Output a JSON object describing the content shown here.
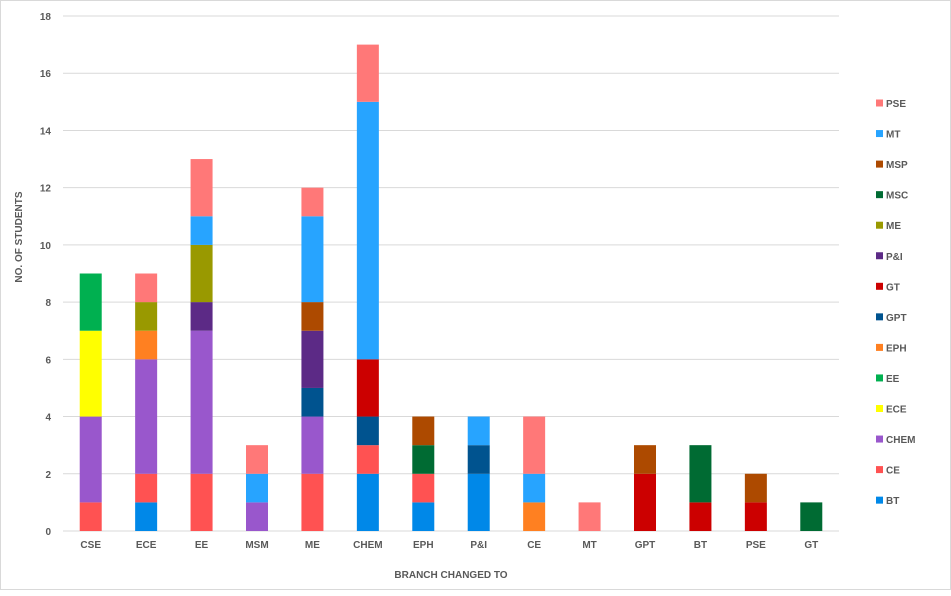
{
  "chart_data": {
    "type": "bar",
    "stacked": true,
    "title": "",
    "xlabel": "BRANCH CHANGED TO",
    "ylabel": "NO. OF STUDENTS",
    "ylim": [
      0,
      18
    ],
    "yticks": [
      0,
      2,
      4,
      6,
      8,
      10,
      12,
      14,
      16,
      18
    ],
    "grid": true,
    "legend_position": "right",
    "categories": [
      "CSE",
      "ECE",
      "EE",
      "MSM",
      "ME",
      "CHEM",
      "EPH",
      "P&I",
      "CE",
      "MT",
      "GPT",
      "BT",
      "PSE",
      "GT"
    ],
    "series": [
      {
        "name": "BT",
        "color": "#0088e8",
        "values": [
          0,
          1,
          0,
          0,
          0,
          2,
          1,
          2,
          0,
          0,
          0,
          0,
          0,
          0
        ]
      },
      {
        "name": "CE",
        "color": "#ff5252",
        "values": [
          1,
          1,
          2,
          0,
          2,
          1,
          1,
          0,
          0,
          0,
          0,
          0,
          0,
          0
        ]
      },
      {
        "name": "CHEM",
        "color": "#9957cc",
        "values": [
          3,
          4,
          5,
          1,
          2,
          0,
          0,
          0,
          0,
          0,
          0,
          0,
          0,
          0
        ]
      },
      {
        "name": "ECE",
        "color": "#ffff00",
        "values": [
          3,
          0,
          0,
          0,
          0,
          0,
          0,
          0,
          0,
          0,
          0,
          0,
          0,
          0
        ]
      },
      {
        "name": "EE",
        "color": "#00b050",
        "values": [
          2,
          0,
          0,
          0,
          0,
          0,
          0,
          0,
          0,
          0,
          0,
          0,
          0,
          0
        ]
      },
      {
        "name": "EPH",
        "color": "#ff8021",
        "values": [
          0,
          1,
          0,
          0,
          0,
          0,
          0,
          0,
          1,
          0,
          0,
          0,
          0,
          0
        ]
      },
      {
        "name": "GPT",
        "color": "#00538f",
        "values": [
          0,
          0,
          0,
          0,
          1,
          1,
          0,
          1,
          0,
          0,
          0,
          0,
          0,
          0
        ]
      },
      {
        "name": "GT",
        "color": "#cc0000",
        "values": [
          0,
          0,
          0,
          0,
          0,
          2,
          0,
          0,
          0,
          0,
          2,
          1,
          1,
          0
        ]
      },
      {
        "name": "P&I",
        "color": "#5c2a86",
        "values": [
          0,
          0,
          1,
          0,
          2,
          0,
          0,
          0,
          0,
          0,
          0,
          0,
          0,
          0
        ]
      },
      {
        "name": "ME",
        "color": "#999900",
        "values": [
          0,
          1,
          2,
          0,
          0,
          0,
          0,
          0,
          0,
          0,
          0,
          0,
          0,
          0
        ]
      },
      {
        "name": "MSC",
        "color": "#006b33",
        "values": [
          0,
          0,
          0,
          0,
          0,
          0,
          1,
          0,
          0,
          0,
          0,
          2,
          0,
          1
        ]
      },
      {
        "name": "MSP",
        "color": "#ad4a00",
        "values": [
          0,
          0,
          0,
          0,
          1,
          0,
          1,
          0,
          0,
          0,
          1,
          0,
          1,
          0
        ]
      },
      {
        "name": "MT",
        "color": "#27a4ff",
        "values": [
          0,
          0,
          1,
          1,
          3,
          9,
          0,
          1,
          1,
          0,
          0,
          0,
          0,
          0
        ]
      },
      {
        "name": "PSE",
        "color": "#ff7878",
        "values": [
          0,
          1,
          2,
          1,
          1,
          2,
          0,
          0,
          2,
          1,
          0,
          0,
          0,
          0
        ]
      }
    ]
  }
}
